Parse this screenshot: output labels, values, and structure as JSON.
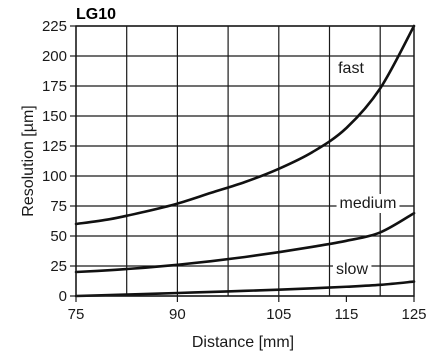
{
  "chart_data": {
    "type": "line",
    "title": "LG10",
    "xlabel": "Distance [mm]",
    "ylabel": "Resolution [µm]",
    "xlim": [
      75,
      125
    ],
    "ylim": [
      0,
      225
    ],
    "x_ticks": [
      75,
      90,
      105,
      115,
      125
    ],
    "y_ticks": [
      0,
      25,
      50,
      75,
      100,
      125,
      150,
      175,
      200,
      225
    ],
    "grid": true,
    "series": [
      {
        "name": "fast",
        "x": [
          75,
          80,
          85,
          90,
          95,
          100,
          105,
          110,
          115,
          120,
          125
        ],
        "y": [
          60,
          64,
          70,
          77,
          86,
          95,
          106,
          120,
          140,
          173,
          225
        ]
      },
      {
        "name": "medium",
        "x": [
          75,
          80,
          85,
          90,
          95,
          100,
          105,
          110,
          115,
          120,
          125
        ],
        "y": [
          20,
          21.5,
          23.5,
          26,
          29,
          32.5,
          36.5,
          41,
          46,
          53,
          69
        ]
      },
      {
        "name": "slow",
        "x": [
          75,
          80,
          85,
          90,
          95,
          100,
          105,
          110,
          115,
          120,
          125
        ],
        "y": [
          0,
          0.8,
          1.6,
          2.5,
          3.4,
          4.3,
          5.3,
          6.4,
          7.7,
          9.3,
          12
        ]
      }
    ]
  }
}
